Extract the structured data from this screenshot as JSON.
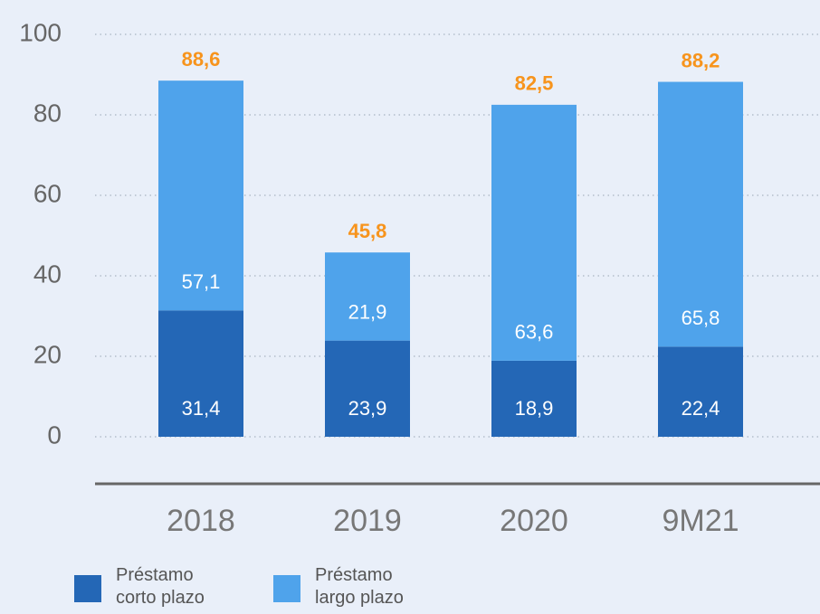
{
  "chart_data": {
    "type": "stacked_bar",
    "categories": [
      "2018",
      "2019",
      "2020",
      "9M21"
    ],
    "series": [
      {
        "name": "Préstamo corto plazo",
        "color": "#2467b6",
        "values": [
          31.4,
          23.9,
          18.9,
          22.4
        ],
        "value_labels": [
          "31,4",
          "23,9",
          "18,9",
          "22,4"
        ]
      },
      {
        "name": "Préstamo largo plazo",
        "color": "#4fa3eb",
        "values": [
          57.1,
          21.9,
          63.6,
          65.8
        ],
        "value_labels": [
          "57,1",
          "21,9",
          "63,6",
          "65,8"
        ]
      }
    ],
    "totals": {
      "values": [
        88.6,
        45.8,
        82.5,
        88.2
      ],
      "value_labels": [
        "88,6",
        "45,8",
        "82,5",
        "88,2"
      ],
      "color": "#f7941d"
    },
    "ylim": [
      0,
      100
    ],
    "yticks": [
      0,
      20,
      40,
      60,
      80,
      100
    ],
    "grid": true
  }
}
